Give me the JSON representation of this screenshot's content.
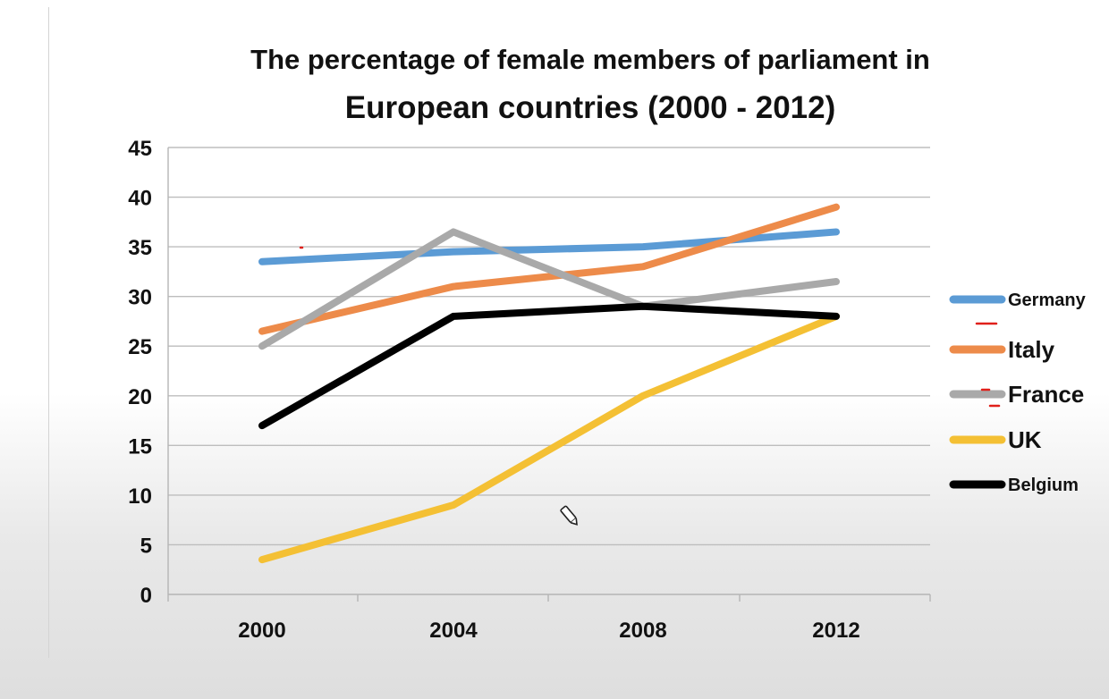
{
  "chart_data": {
    "type": "line",
    "title": "The percentage of female members of parliament in",
    "subtitle": "European countries (2000 - 2012)",
    "xlabel": "",
    "ylabel": "",
    "categories": [
      "2000",
      "2004",
      "2008",
      "2012"
    ],
    "yticks": [
      "0",
      "5",
      "10",
      "15",
      "20",
      "25",
      "30",
      "35",
      "40",
      "45"
    ],
    "ylim": [
      0,
      45
    ],
    "grid": true,
    "legend_position": "right",
    "series": [
      {
        "name": "Germany",
        "color": "#5b9bd5",
        "values": [
          33.5,
          34.5,
          35,
          36.5
        ]
      },
      {
        "name": "Italy",
        "color": "#ed8b4a",
        "values": [
          26.5,
          31,
          33,
          39
        ]
      },
      {
        "name": "France",
        "color": "#a9a9a9",
        "values": [
          25,
          36.5,
          29,
          31.5
        ]
      },
      {
        "name": "UK",
        "color": "#f4c034",
        "values": [
          3.5,
          9,
          20,
          28
        ]
      },
      {
        "name": "Belgium",
        "color": "#000000",
        "values": [
          17,
          28,
          29,
          28
        ]
      }
    ]
  }
}
